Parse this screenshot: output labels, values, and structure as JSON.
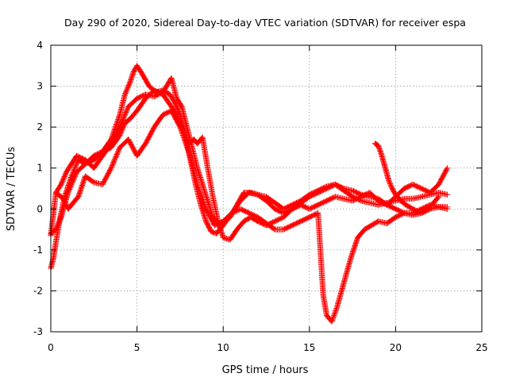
{
  "chart_data": {
    "type": "scatter",
    "title": "Day 290 of 2020, Sidereal Day-to-day VTEC variation (SDTVAR) for receiver espa",
    "xlabel": "GPS time / hours",
    "ylabel": "SDTVAR / TECUs",
    "xlim": [
      0,
      25
    ],
    "ylim": [
      -3,
      4
    ],
    "xticks": [
      0,
      5,
      10,
      15,
      20,
      25
    ],
    "yticks": [
      -3,
      -2,
      -1,
      0,
      1,
      2,
      3,
      4
    ],
    "xtick_labels": [
      "0",
      "5",
      "10",
      "15",
      "20",
      "25"
    ],
    "ytick_labels": [
      "-3",
      "-2",
      "-1",
      "0",
      "1",
      "2",
      "3",
      "4"
    ],
    "grid": true,
    "marker": "+",
    "color": "#ff0000",
    "series": [
      {
        "name": "trace-1",
        "x": [
          0.0,
          0.15,
          0.3,
          0.5,
          0.8,
          1.2,
          1.6,
          2.0,
          2.5,
          3.0,
          3.5,
          4.0,
          4.3,
          4.6,
          4.8,
          5.0,
          5.3,
          5.7,
          6.1,
          6.5,
          6.9,
          7.2,
          7.5,
          7.8,
          8.1,
          8.4,
          8.7,
          9.0,
          9.3,
          9.6,
          10.0,
          10.5,
          11.0,
          11.5,
          12.0,
          12.5,
          13.0,
          13.5,
          14.0,
          14.5,
          15.0,
          15.5,
          16.0,
          16.5,
          17.0,
          17.5,
          18.0,
          18.5,
          19.0,
          19.5,
          20.0,
          20.5,
          21.0,
          21.5,
          22.0,
          22.5,
          23.0
        ],
        "y": [
          -1.45,
          -1.2,
          -0.8,
          -0.3,
          0.3,
          0.8,
          1.2,
          1.1,
          1.2,
          1.4,
          1.7,
          2.3,
          2.8,
          3.1,
          3.35,
          3.5,
          3.3,
          3.0,
          2.85,
          2.9,
          2.8,
          2.6,
          2.3,
          1.8,
          1.2,
          0.6,
          0.1,
          -0.3,
          -0.55,
          -0.6,
          -0.4,
          -0.1,
          0.2,
          0.4,
          0.35,
          0.2,
          0.0,
          -0.1,
          0.0,
          0.15,
          0.3,
          0.4,
          0.5,
          0.6,
          0.45,
          0.3,
          0.2,
          0.15,
          0.1,
          0.15,
          0.2,
          0.25,
          0.25,
          0.3,
          0.35,
          0.4,
          0.35
        ]
      },
      {
        "name": "trace-2",
        "x": [
          0.0,
          0.3,
          0.6,
          1.0,
          1.5,
          2.0,
          2.5,
          3.0,
          3.5,
          4.0,
          4.3,
          4.6,
          5.0,
          5.5,
          6.0,
          6.5,
          7.0,
          7.5,
          7.8,
          8.0,
          8.3,
          8.5,
          8.8,
          9.1,
          9.4,
          9.7,
          10.0,
          10.4,
          10.8,
          11.2,
          11.6,
          12.0,
          12.5,
          13.0,
          13.5,
          14.0,
          14.5,
          15.0,
          15.5,
          16.0,
          16.5,
          17.0,
          17.5,
          18.0,
          18.5,
          19.0,
          19.5,
          20.0,
          20.5,
          21.0,
          21.5,
          22.0,
          22.5,
          23.0
        ],
        "y": [
          -0.6,
          -0.5,
          -0.2,
          0.4,
          0.9,
          1.1,
          1.3,
          1.4,
          1.5,
          1.8,
          2.1,
          2.2,
          2.4,
          2.7,
          2.9,
          2.8,
          2.5,
          2.1,
          1.8,
          1.6,
          1.7,
          1.6,
          1.75,
          1.0,
          0.3,
          -0.3,
          -0.7,
          -0.75,
          -0.5,
          -0.3,
          -0.2,
          -0.3,
          -0.4,
          -0.3,
          -0.2,
          0.0,
          0.1,
          0.0,
          0.1,
          0.2,
          0.3,
          0.25,
          0.2,
          0.3,
          0.4,
          0.2,
          0.1,
          0.3,
          0.5,
          0.6,
          0.5,
          0.4,
          0.6,
          1.0
        ]
      },
      {
        "name": "trace-3",
        "x": [
          0.0,
          0.3,
          0.6,
          0.9,
          1.2,
          1.5,
          2.0,
          2.5,
          3.0,
          3.5,
          4.0,
          4.5,
          5.0,
          5.5,
          6.0,
          6.5,
          7.0,
          7.3,
          7.6,
          7.9,
          8.2,
          8.5,
          8.8,
          9.1,
          9.4,
          9.7,
          10.0,
          10.4,
          10.8,
          11.2,
          11.6,
          12.0,
          12.5,
          13.0,
          13.5,
          14.0,
          14.5,
          15.0,
          15.5,
          16.0,
          16.5,
          17.0,
          17.5,
          18.0,
          18.5,
          19.0,
          19.5,
          20.0,
          20.5,
          21.0,
          21.5,
          22.0,
          22.5,
          23.0
        ],
        "y": [
          -0.65,
          0.4,
          0.6,
          0.9,
          1.1,
          1.3,
          1.2,
          1.0,
          1.3,
          1.6,
          2.0,
          2.5,
          2.7,
          2.8,
          2.75,
          2.85,
          3.2,
          2.7,
          2.5,
          2.0,
          1.5,
          1.0,
          0.6,
          0.2,
          -0.2,
          -0.4,
          -0.35,
          -0.2,
          0.1,
          0.4,
          0.4,
          0.35,
          0.3,
          0.15,
          0.0,
          0.1,
          0.2,
          0.35,
          0.45,
          0.55,
          0.6,
          0.5,
          0.45,
          0.35,
          0.3,
          0.25,
          0.1,
          0.0,
          -0.1,
          -0.1,
          0.0,
          0.1,
          0.05,
          0.05
        ]
      },
      {
        "name": "trace-4",
        "x": [
          0.3,
          0.6,
          0.8,
          1.0,
          1.2,
          1.4,
          1.6,
          2.0,
          2.5,
          3.0,
          3.5,
          4.0,
          4.5,
          5.0,
          5.5,
          6.0,
          6.5,
          7.0,
          7.5,
          8.0,
          8.5,
          9.0,
          9.5,
          10.0,
          10.5,
          11.0,
          11.5,
          12.0,
          12.5,
          13.0,
          13.5,
          14.0,
          14.5,
          15.0,
          15.5,
          15.8,
          16.0,
          16.3,
          16.6,
          17.0,
          17.4,
          17.8,
          18.2,
          18.6,
          19.0,
          19.5,
          20.0,
          20.5,
          21.0,
          21.5,
          22.0,
          22.5,
          23.0
        ],
        "y": [
          0.4,
          0.3,
          0.2,
          0.0,
          0.1,
          0.2,
          0.3,
          0.8,
          0.65,
          0.6,
          1.0,
          1.5,
          1.7,
          1.3,
          1.6,
          2.0,
          2.3,
          2.4,
          2.0,
          1.4,
          0.6,
          0.0,
          -0.4,
          -0.3,
          -0.1,
          0.0,
          -0.1,
          -0.2,
          -0.35,
          -0.5,
          -0.5,
          -0.4,
          -0.3,
          -0.2,
          -0.1,
          -2.1,
          -2.6,
          -2.75,
          -2.4,
          -1.8,
          -1.2,
          -0.7,
          -0.5,
          -0.4,
          -0.3,
          -0.35,
          -0.2,
          -0.1,
          -0.15,
          -0.1,
          0.0,
          0.05,
          0.0
        ]
      },
      {
        "name": "trace-5",
        "x": [
          18.8,
          19.0,
          19.2,
          19.4,
          19.6,
          19.8,
          20.0,
          20.3,
          20.6,
          21.0,
          21.5,
          22.0,
          22.5
        ],
        "y": [
          1.6,
          1.55,
          1.3,
          1.0,
          0.7,
          0.5,
          0.35,
          0.2,
          0.1,
          0.0,
          -0.1,
          0.05,
          0.3
        ]
      }
    ]
  }
}
